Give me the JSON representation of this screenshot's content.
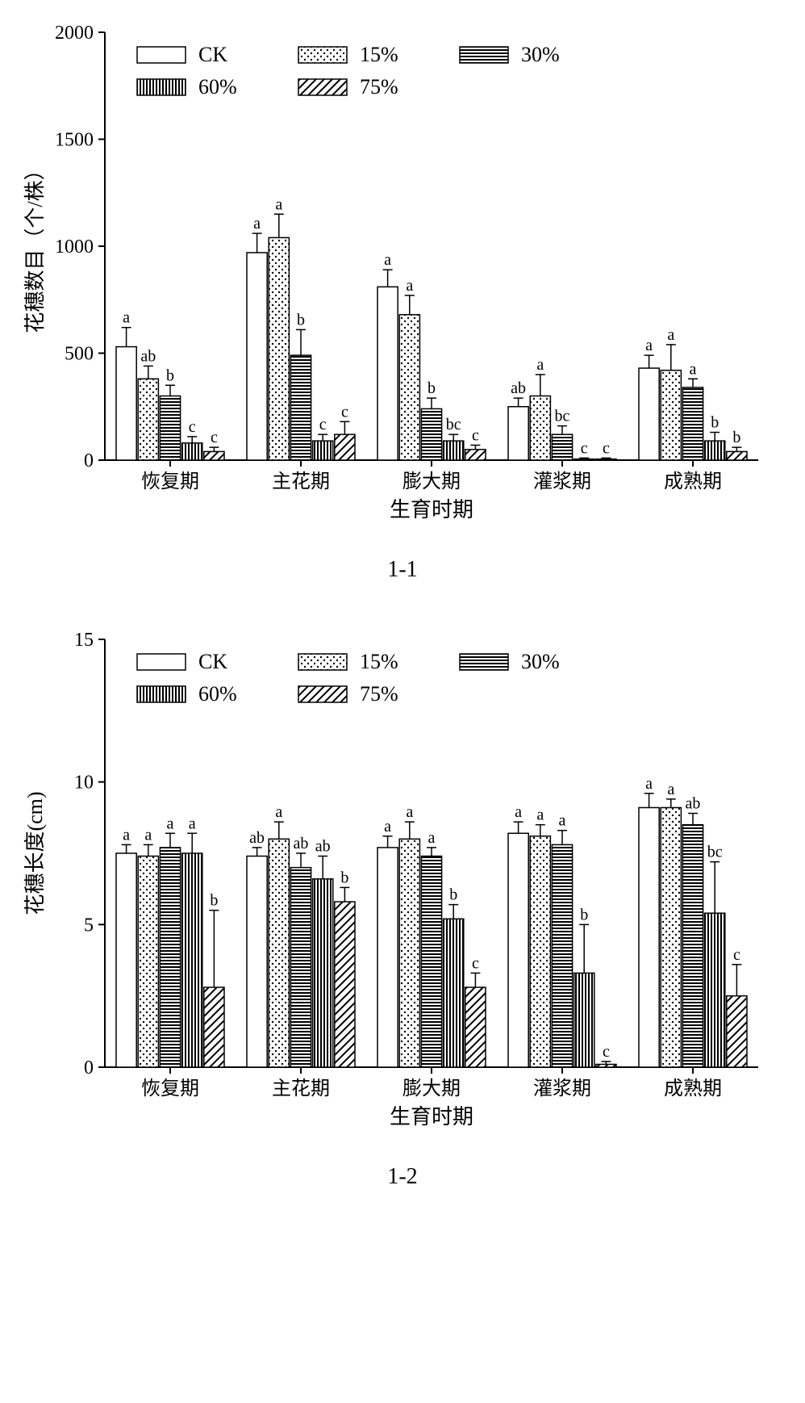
{
  "global": {
    "background_color": "#ffffff",
    "axis_color": "#000000",
    "text_color": "#000000",
    "bar_border_color": "#000000",
    "errorbar_color": "#000000",
    "font_family": "Times New Roman",
    "categories": [
      "恢复期",
      "主花期",
      "膨大期",
      "灌浆期",
      "成熟期"
    ],
    "series": [
      {
        "key": "CK",
        "label": "CK",
        "pattern": "open"
      },
      {
        "key": "p15",
        "label": "15%",
        "pattern": "dots"
      },
      {
        "key": "p30",
        "label": "30%",
        "pattern": "hstripes"
      },
      {
        "key": "p60",
        "label": "60%",
        "pattern": "vstripes"
      },
      {
        "key": "p75",
        "label": "75%",
        "pattern": "diag"
      }
    ],
    "legend_swatch_w": 60,
    "legend_swatch_h": 20,
    "legend_fontsize": 26
  },
  "chart1": {
    "type": "grouped-bar",
    "panel_label": "1-1",
    "ylabel": "花穗数目（个/株）",
    "xlabel": "生育时期",
    "ylim": [
      0,
      2000
    ],
    "yticks": [
      0,
      500,
      1000,
      1500,
      2000
    ],
    "ytick_fontsize": 24,
    "axis_label_fontsize": 26,
    "category_fontsize": 24,
    "sig_fontsize": 20,
    "bar_border_width": 1.5,
    "errorbar_width": 1.5,
    "errorbar_cap": 6,
    "axis_width": 2,
    "tick_len": 8,
    "data": {
      "恢复期": {
        "CK": {
          "value": 530,
          "err": 90,
          "sig": "a"
        },
        "p15": {
          "value": 380,
          "err": 60,
          "sig": "ab"
        },
        "p30": {
          "value": 300,
          "err": 50,
          "sig": "b"
        },
        "p60": {
          "value": 80,
          "err": 30,
          "sig": "c"
        },
        "p75": {
          "value": 40,
          "err": 20,
          "sig": "c"
        }
      },
      "主花期": {
        "CK": {
          "value": 970,
          "err": 90,
          "sig": "a"
        },
        "p15": {
          "value": 1040,
          "err": 110,
          "sig": "a"
        },
        "p30": {
          "value": 490,
          "err": 120,
          "sig": "b"
        },
        "p60": {
          "value": 90,
          "err": 30,
          "sig": "c"
        },
        "p75": {
          "value": 120,
          "err": 60,
          "sig": "c"
        }
      },
      "膨大期": {
        "CK": {
          "value": 810,
          "err": 80,
          "sig": "a"
        },
        "p15": {
          "value": 680,
          "err": 90,
          "sig": "a"
        },
        "p30": {
          "value": 240,
          "err": 50,
          "sig": "b"
        },
        "p60": {
          "value": 90,
          "err": 30,
          "sig": "bc"
        },
        "p75": {
          "value": 50,
          "err": 20,
          "sig": "c"
        }
      },
      "灌浆期": {
        "CK": {
          "value": 250,
          "err": 40,
          "sig": "ab"
        },
        "p15": {
          "value": 300,
          "err": 100,
          "sig": "a"
        },
        "p30": {
          "value": 120,
          "err": 40,
          "sig": "bc"
        },
        "p60": {
          "value": 5,
          "err": 5,
          "sig": "c"
        },
        "p75": {
          "value": 5,
          "err": 5,
          "sig": "c"
        }
      },
      "成熟期": {
        "CK": {
          "value": 430,
          "err": 60,
          "sig": "a"
        },
        "p15": {
          "value": 420,
          "err": 120,
          "sig": "a"
        },
        "p30": {
          "value": 340,
          "err": 40,
          "sig": "a"
        },
        "p60": {
          "value": 90,
          "err": 40,
          "sig": "b"
        },
        "p75": {
          "value": 40,
          "err": 20,
          "sig": "b"
        }
      }
    }
  },
  "chart2": {
    "type": "grouped-bar",
    "panel_label": "1-2",
    "ylabel": "花穗长度(cm)",
    "xlabel": "生育时期",
    "ylim": [
      0,
      15
    ],
    "yticks": [
      0,
      5,
      10,
      15
    ],
    "ytick_fontsize": 24,
    "axis_label_fontsize": 26,
    "category_fontsize": 24,
    "sig_fontsize": 20,
    "bar_border_width": 1.5,
    "errorbar_width": 1.5,
    "errorbar_cap": 6,
    "axis_width": 2,
    "tick_len": 8,
    "data": {
      "恢复期": {
        "CK": {
          "value": 7.5,
          "err": 0.3,
          "sig": "a"
        },
        "p15": {
          "value": 7.4,
          "err": 0.4,
          "sig": "a"
        },
        "p30": {
          "value": 7.7,
          "err": 0.5,
          "sig": "a"
        },
        "p60": {
          "value": 7.5,
          "err": 0.7,
          "sig": "a"
        },
        "p75": {
          "value": 2.8,
          "err": 2.7,
          "sig": "b"
        }
      },
      "主花期": {
        "CK": {
          "value": 7.4,
          "err": 0.3,
          "sig": "ab"
        },
        "p15": {
          "value": 8.0,
          "err": 0.6,
          "sig": "a"
        },
        "p30": {
          "value": 7.0,
          "err": 0.5,
          "sig": "ab"
        },
        "p60": {
          "value": 6.6,
          "err": 0.8,
          "sig": "ab"
        },
        "p75": {
          "value": 5.8,
          "err": 0.5,
          "sig": "b"
        }
      },
      "膨大期": {
        "CK": {
          "value": 7.7,
          "err": 0.4,
          "sig": "a"
        },
        "p15": {
          "value": 8.0,
          "err": 0.6,
          "sig": "a"
        },
        "p30": {
          "value": 7.4,
          "err": 0.3,
          "sig": "a"
        },
        "p60": {
          "value": 5.2,
          "err": 0.5,
          "sig": "b"
        },
        "p75": {
          "value": 2.8,
          "err": 0.5,
          "sig": "c"
        }
      },
      "灌浆期": {
        "CK": {
          "value": 8.2,
          "err": 0.4,
          "sig": "a"
        },
        "p15": {
          "value": 8.1,
          "err": 0.4,
          "sig": "a"
        },
        "p30": {
          "value": 7.8,
          "err": 0.5,
          "sig": "a"
        },
        "p60": {
          "value": 3.3,
          "err": 1.7,
          "sig": "b"
        },
        "p75": {
          "value": 0.1,
          "err": 0.1,
          "sig": "c"
        }
      },
      "成熟期": {
        "CK": {
          "value": 9.1,
          "err": 0.5,
          "sig": "a"
        },
        "p15": {
          "value": 9.1,
          "err": 0.3,
          "sig": "a"
        },
        "p30": {
          "value": 8.5,
          "err": 0.4,
          "sig": "ab"
        },
        "p60": {
          "value": 5.4,
          "err": 1.8,
          "sig": "bc"
        },
        "p75": {
          "value": 2.5,
          "err": 1.1,
          "sig": "c"
        }
      }
    }
  }
}
